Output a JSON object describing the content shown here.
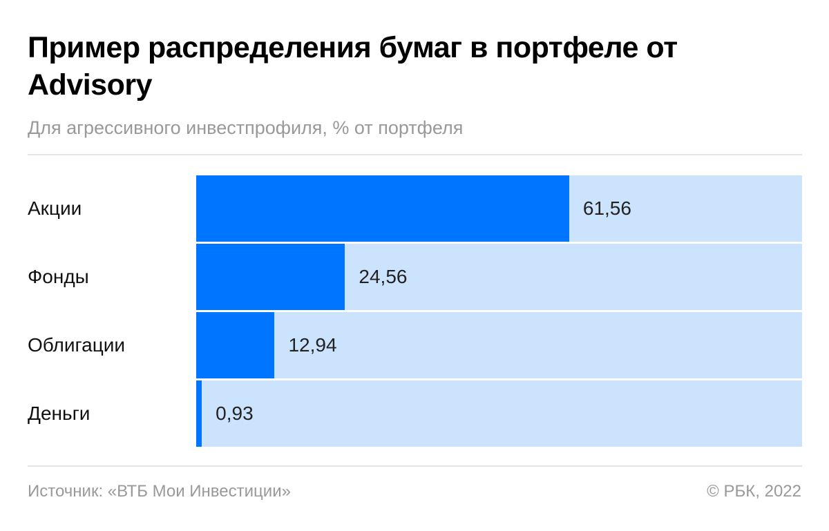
{
  "header": {
    "title": "Пример распределения бумаг в портфеле от Advisory",
    "subtitle": "Для агрессивного инвестпрофиля, % от портфеля"
  },
  "footer": {
    "source": "Источник: «ВТБ Мои Инвестиции»",
    "copyright": "© РБК, 2022"
  },
  "colors": {
    "bar": "#0075ff",
    "track": "#cce3fd"
  },
  "chart_data": {
    "type": "bar",
    "orientation": "horizontal",
    "title": "Пример распределения бумаг в портфеле от Advisory",
    "subtitle": "Для агрессивного инвестпрофиля, % от портфеля",
    "categories": [
      "Акции",
      "Фонды",
      "Облигации",
      "Деньги"
    ],
    "values": [
      61.56,
      24.56,
      12.94,
      0.93
    ],
    "value_labels": [
      "61,56",
      "24,56",
      "12,94",
      "0,93"
    ],
    "xlabel": "",
    "ylabel": "",
    "xlim": [
      0,
      100
    ],
    "grid": false,
    "legend": null,
    "source": "Источник: «ВТБ Мои Инвестиции»"
  }
}
